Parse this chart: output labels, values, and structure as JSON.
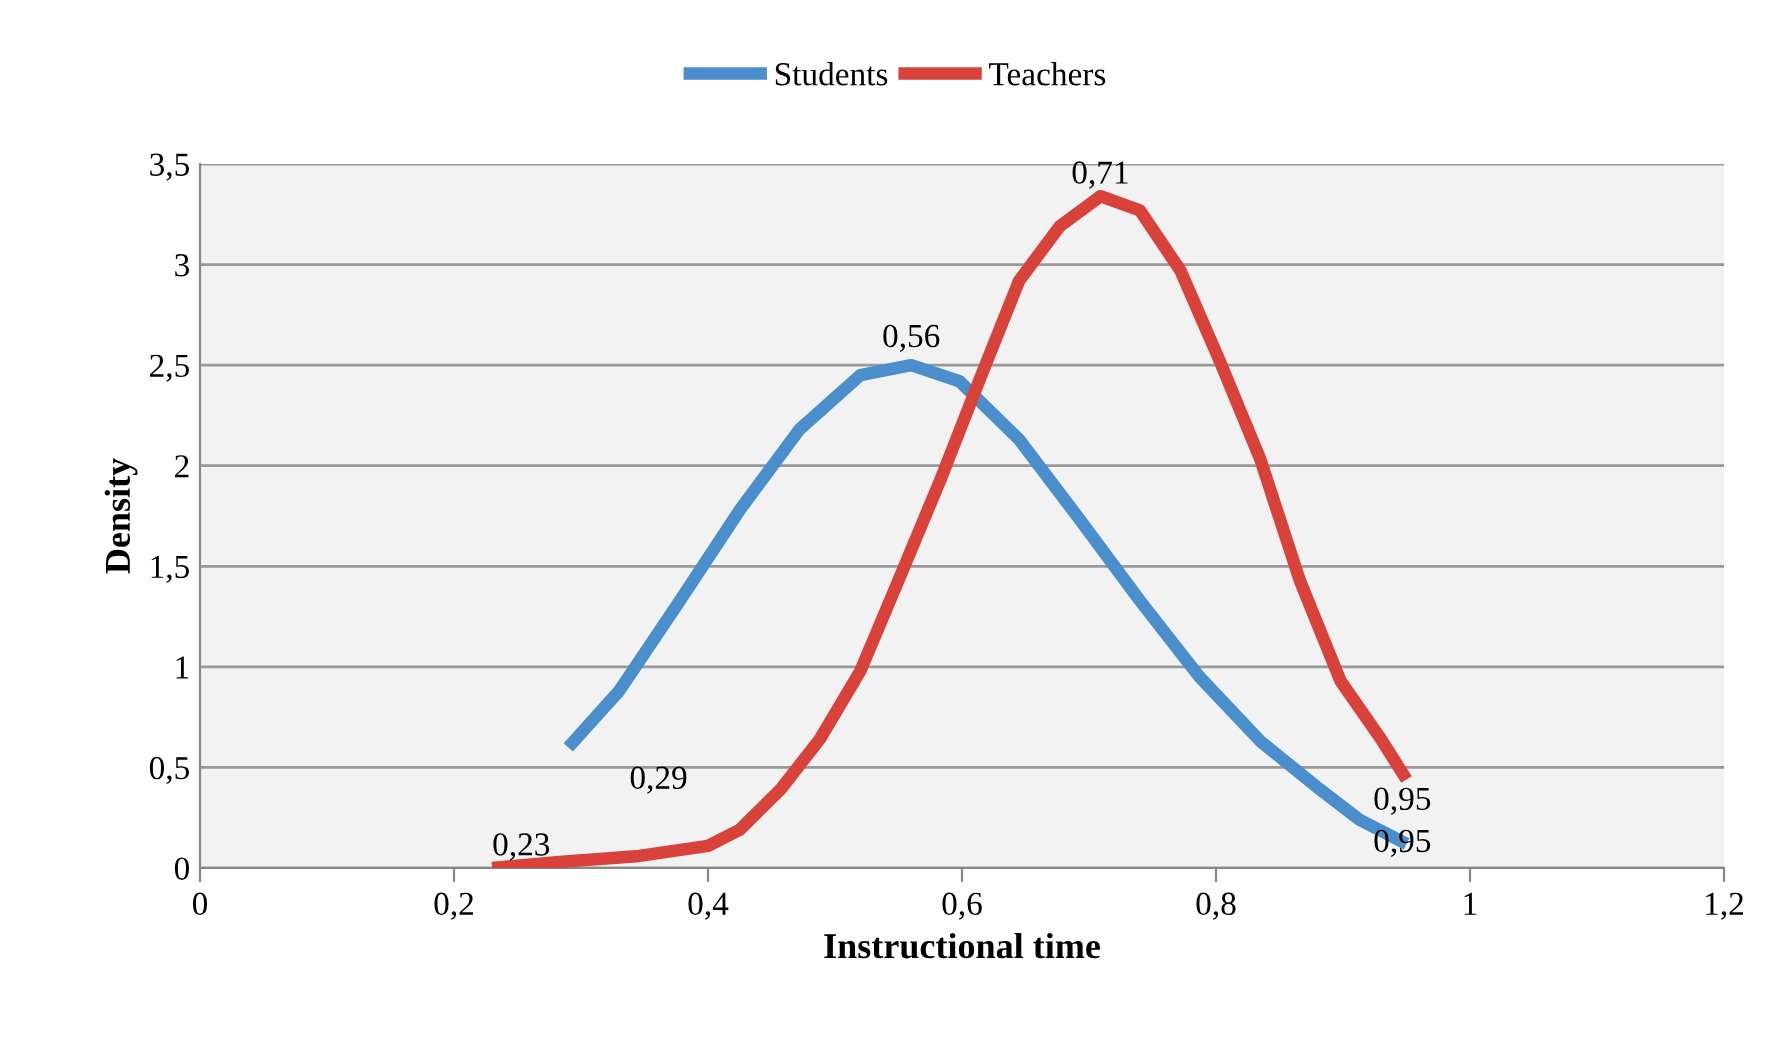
{
  "chart_data": {
    "type": "line",
    "xlabel": "Instructional time",
    "ylabel": "Density",
    "xlim": [
      0,
      1.2
    ],
    "ylim": [
      0,
      3.5
    ],
    "xticks": [
      0,
      {
        "value": 0.2,
        "label": "0,2"
      },
      {
        "value": 0.4,
        "label": "0,4"
      },
      {
        "value": 0.6,
        "label": "0,6"
      },
      {
        "value": 0.8,
        "label": "0,8"
      },
      1,
      {
        "value": 1.2,
        "label": "1,2"
      }
    ],
    "yticks": [
      0,
      {
        "value": 0.5,
        "label": "0,5"
      },
      1,
      {
        "value": 1.5,
        "label": "1,5"
      },
      2,
      {
        "value": 2.5,
        "label": "2,5"
      },
      3,
      {
        "value": 3.5,
        "label": "3,5"
      }
    ],
    "grid": "y",
    "legend": "top",
    "marker": "none",
    "line_style": "solid",
    "series": [
      {
        "name": "Students",
        "color": "#4a8fcc",
        "x": [
          0.29,
          0.33,
          0.378,
          0.425,
          0.472,
          0.52,
          0.56,
          0.598,
          0.645,
          0.693,
          0.74,
          0.787,
          0.835,
          0.882,
          0.913,
          0.95
        ],
        "values": [
          0.6,
          0.88,
          1.33,
          1.78,
          2.18,
          2.45,
          2.5,
          2.42,
          2.13,
          1.73,
          1.33,
          0.95,
          0.63,
          0.39,
          0.24,
          0.12
        ]
      },
      {
        "name": "Teachers",
        "color": "#d9413b",
        "x": [
          0.23,
          0.283,
          0.346,
          0.4,
          0.425,
          0.457,
          0.488,
          0.52,
          0.55,
          0.583,
          0.614,
          0.645,
          0.677,
          0.709,
          0.74,
          0.772,
          0.803,
          0.835,
          0.866,
          0.898,
          0.93,
          0.95
        ],
        "values": [
          0.0,
          0.03,
          0.06,
          0.11,
          0.19,
          0.39,
          0.64,
          0.98,
          1.43,
          1.93,
          2.43,
          2.92,
          3.19,
          3.34,
          3.27,
          2.97,
          2.52,
          2.03,
          1.43,
          0.93,
          0.64,
          0.44
        ]
      }
    ],
    "annotations": [
      {
        "text": "0,29",
        "x": 0.29,
        "y": 0.6
      },
      {
        "text": "0,56",
        "x": 0.56,
        "y": 2.5
      },
      {
        "text": "0,95",
        "x": 0.95,
        "y": 0.12
      },
      {
        "text": "0,23",
        "x": 0.23,
        "y": 0.0
      },
      {
        "text": "0,71",
        "x": 0.709,
        "y": 3.34
      },
      {
        "text": "0,95",
        "x": 0.95,
        "y": 0.44
      }
    ]
  }
}
